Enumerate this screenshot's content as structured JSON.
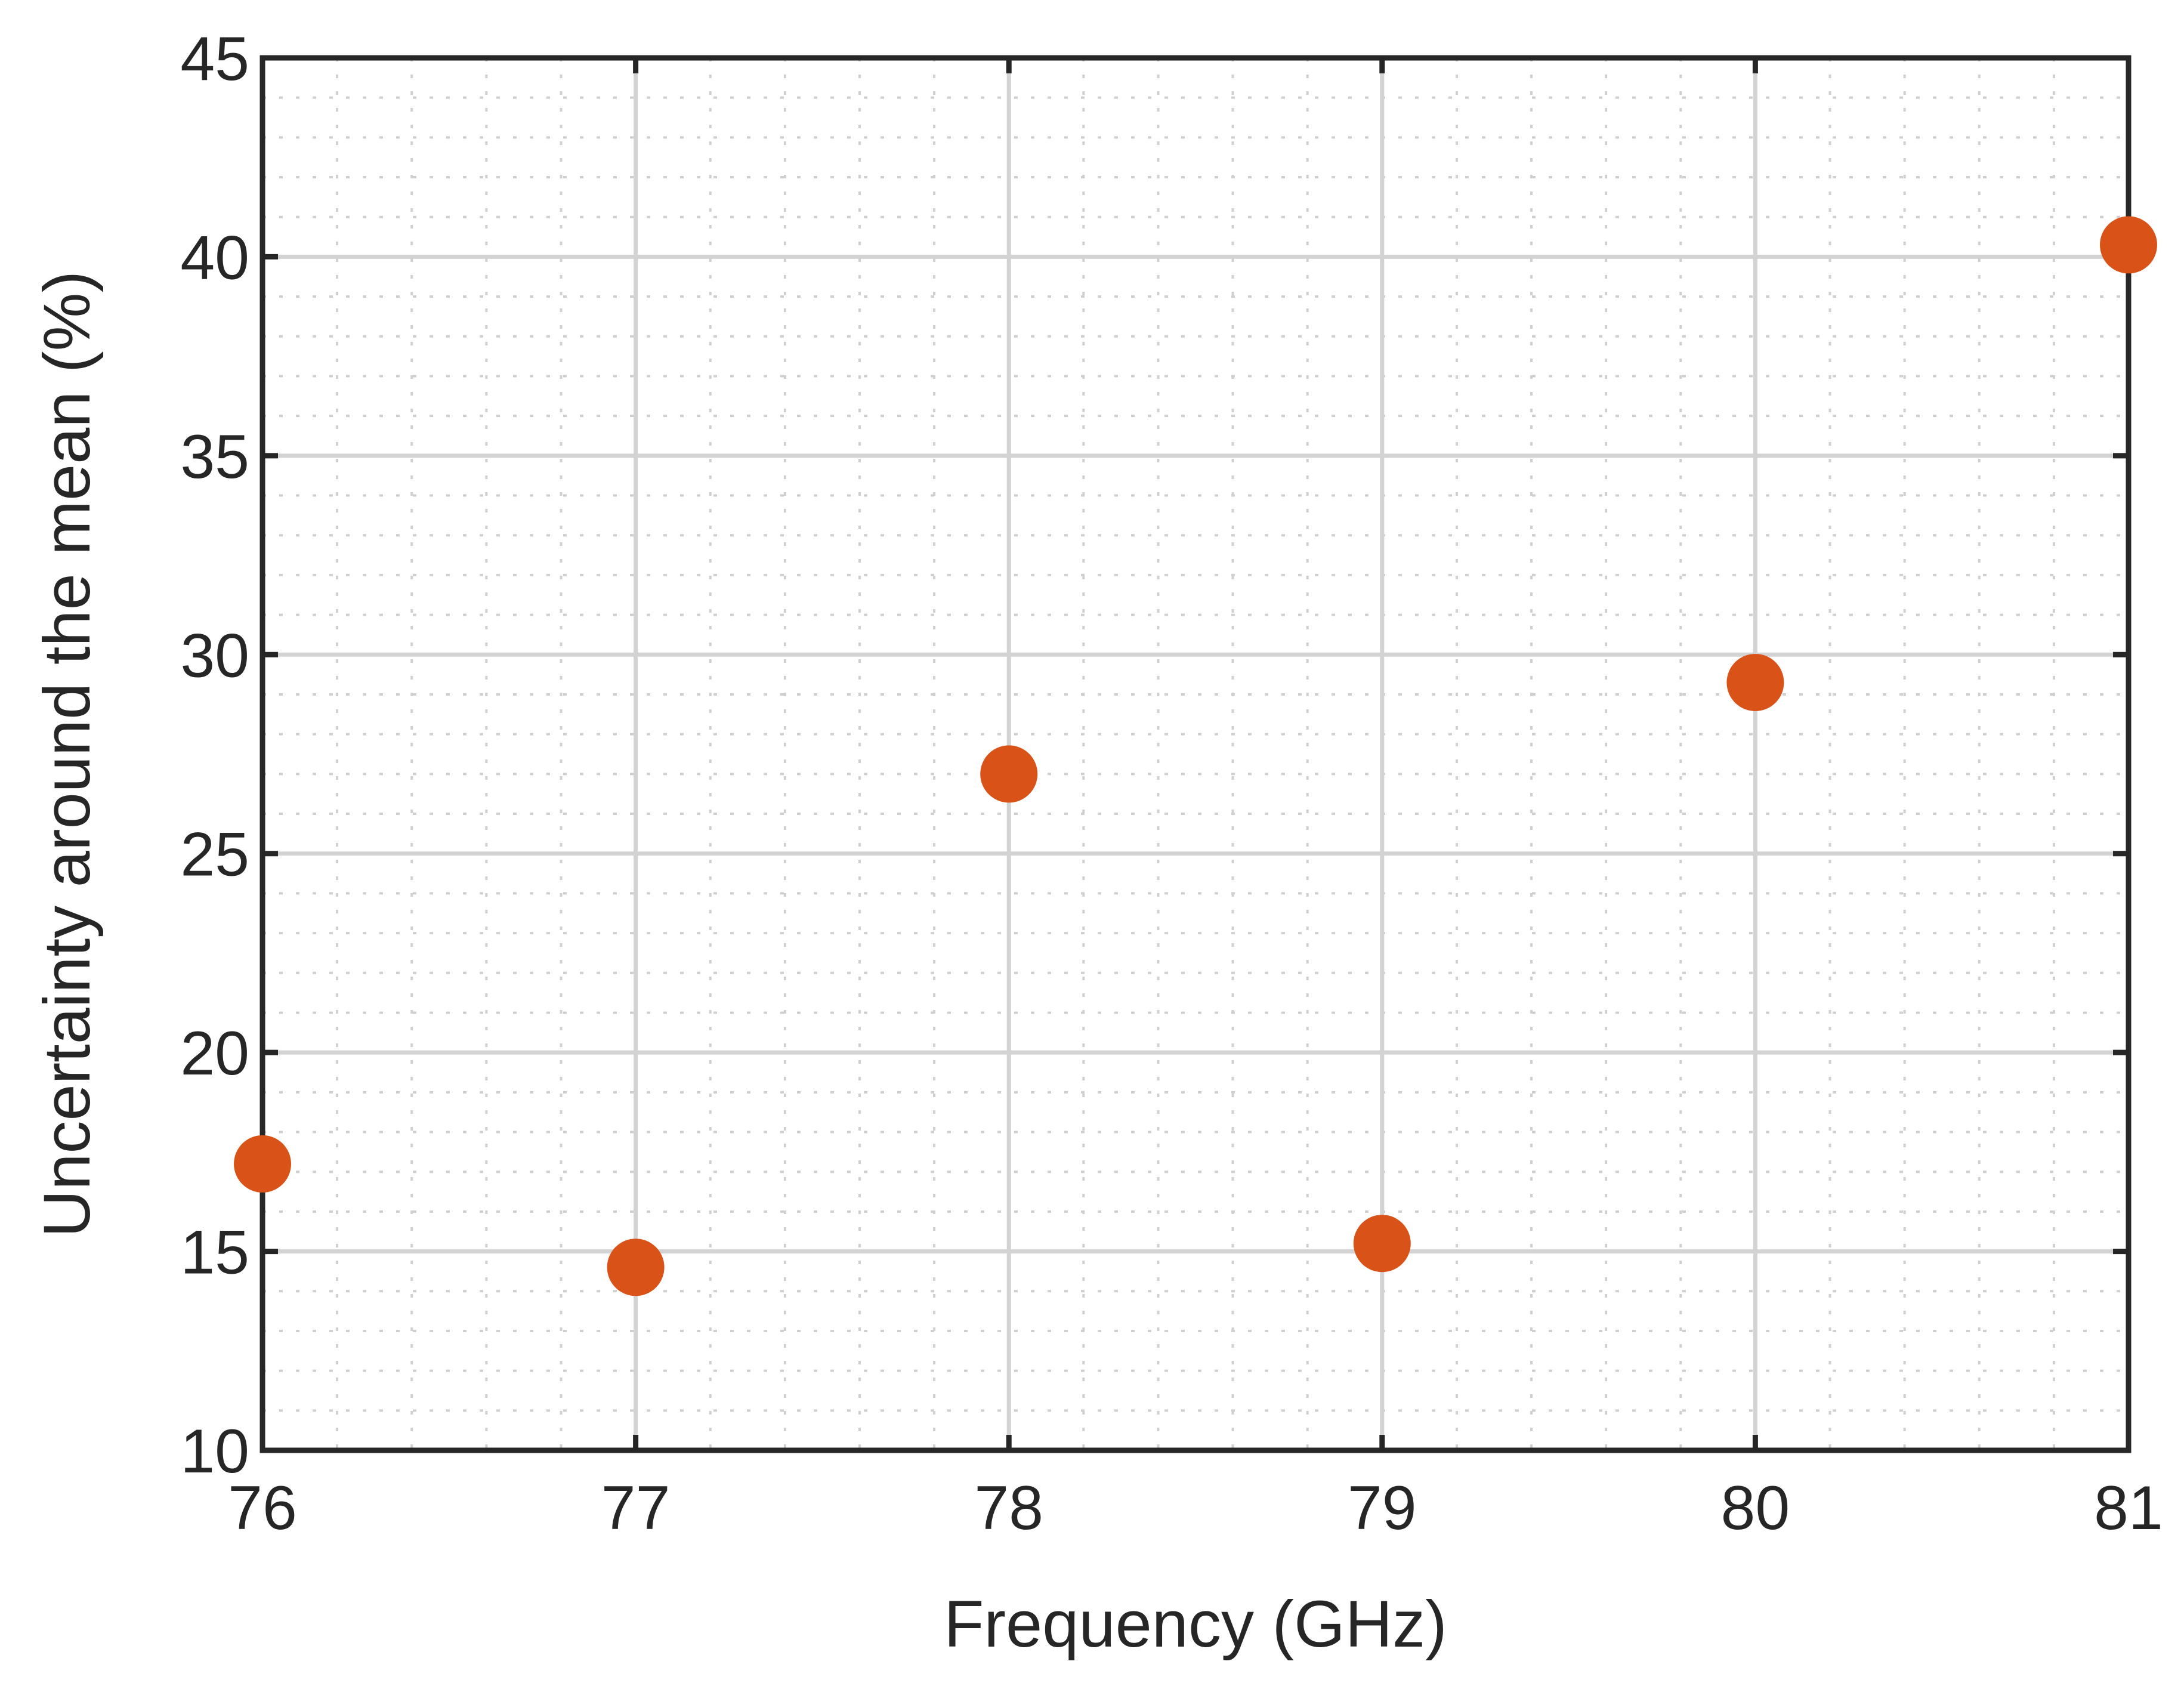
{
  "chart_data": {
    "type": "scatter",
    "xlabel": "Frequency (GHz)",
    "ylabel": "Uncertainty around the mean (%)",
    "xlim": [
      76,
      81
    ],
    "ylim": [
      10,
      45
    ],
    "xticks": [
      76,
      77,
      78,
      79,
      80,
      81
    ],
    "yticks": [
      10,
      15,
      20,
      25,
      30,
      35,
      40,
      45
    ],
    "xminor_step": 0.2,
    "yminor_step": 1,
    "grid": true,
    "minor_grid": true,
    "series": [
      {
        "color": "#d95319",
        "points": [
          {
            "x": 76,
            "y": 17.2
          },
          {
            "x": 77,
            "y": 14.6
          },
          {
            "x": 78,
            "y": 27.0
          },
          {
            "x": 79,
            "y": 15.2
          },
          {
            "x": 80,
            "y": 29.3
          },
          {
            "x": 81,
            "y": 40.3
          }
        ]
      }
    ]
  }
}
